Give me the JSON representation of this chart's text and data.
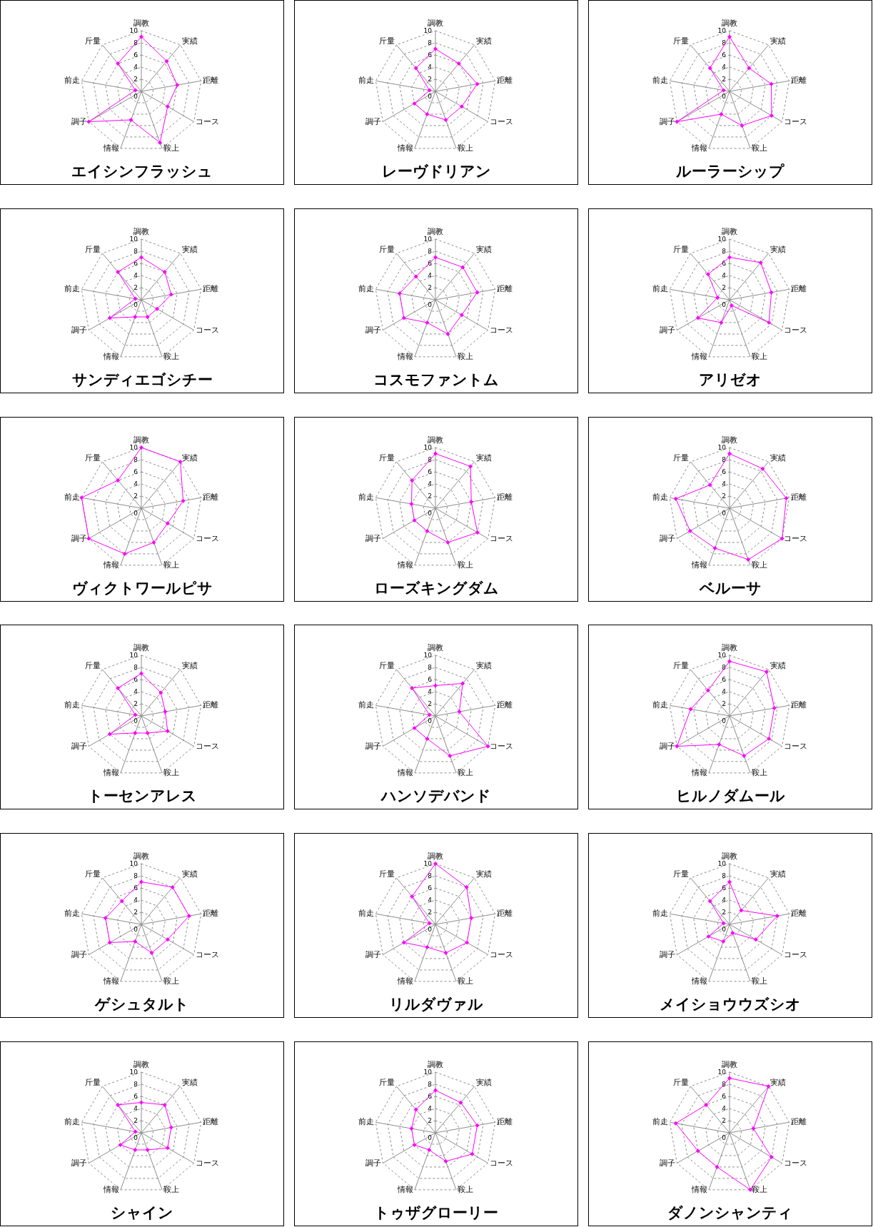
{
  "chart_data": [
    {
      "type": "radar",
      "title": "エイシンフラッシュ",
      "categories": [
        "調教",
        "実績",
        "距離",
        "コース",
        "鞍上",
        "情報",
        "調子",
        "前走",
        "斤量"
      ],
      "series": [
        {
          "color": "#ff00ff",
          "values": [
            9,
            6.5,
            6,
            5,
            9,
            5,
            10,
            1,
            6
          ]
        }
      ],
      "ylim": [
        0,
        10
      ],
      "yticks": [
        0,
        2,
        4,
        6,
        8,
        10
      ],
      "grid": true,
      "marker": "diamond"
    },
    {
      "type": "radar",
      "title": "レーヴドリアン",
      "categories": [
        "調教",
        "実績",
        "距離",
        "コース",
        "鞍上",
        "情報",
        "調子",
        "前走",
        "斤量"
      ],
      "series": [
        {
          "color": "#ff00ff",
          "values": [
            7,
            6,
            7,
            5,
            5,
            4,
            4,
            1,
            5
          ]
        }
      ],
      "ylim": [
        0,
        10
      ],
      "yticks": [
        0,
        2,
        4,
        6,
        8,
        10
      ],
      "grid": true,
      "marker": "diamond"
    },
    {
      "type": "radar",
      "title": "ルーラーシップ",
      "categories": [
        "調教",
        "実績",
        "距離",
        "コース",
        "鞍上",
        "情報",
        "調子",
        "前走",
        "斤量"
      ],
      "series": [
        {
          "color": "#ff00ff",
          "values": [
            9,
            5,
            7,
            8,
            6,
            4,
            10,
            1,
            5
          ]
        }
      ],
      "ylim": [
        0,
        10
      ],
      "yticks": [
        0,
        2,
        4,
        6,
        8,
        10
      ],
      "grid": true,
      "marker": "diamond"
    },
    {
      "type": "radar",
      "title": "サンディエゴシチー",
      "categories": [
        "調教",
        "実績",
        "距離",
        "コース",
        "鞍上",
        "情報",
        "調子",
        "前走",
        "斤量"
      ],
      "series": [
        {
          "color": "#ff00ff",
          "values": [
            7,
            6,
            5,
            3,
            3,
            3,
            6,
            1,
            6
          ]
        }
      ],
      "ylim": [
        0,
        10
      ],
      "yticks": [
        0,
        2,
        4,
        6,
        8,
        10
      ],
      "grid": true,
      "marker": "diamond"
    },
    {
      "type": "radar",
      "title": "コスモファントム",
      "categories": [
        "調教",
        "実績",
        "距離",
        "コース",
        "鞍上",
        "情報",
        "調子",
        "前走",
        "斤量"
      ],
      "series": [
        {
          "color": "#ff00ff",
          "values": [
            7,
            7,
            7,
            5,
            6,
            4,
            6,
            6,
            5
          ]
        }
      ],
      "ylim": [
        0,
        10
      ],
      "yticks": [
        0,
        2,
        4,
        6,
        8,
        10
      ],
      "grid": true,
      "marker": "diamond"
    },
    {
      "type": "radar",
      "title": "アリゼオ",
      "categories": [
        "調教",
        "実績",
        "距離",
        "コース",
        "鞍上",
        "情報",
        "調子",
        "前走",
        "斤量"
      ],
      "series": [
        {
          "color": "#ff00ff",
          "values": [
            7,
            8,
            7,
            7.5,
            1,
            4,
            6,
            2,
            5.5
          ]
        }
      ],
      "ylim": [
        0,
        10
      ],
      "yticks": [
        0,
        2,
        4,
        6,
        8,
        10
      ],
      "grid": true,
      "marker": "diamond"
    },
    {
      "type": "radar",
      "title": "ヴィクトワールピサ",
      "categories": [
        "調教",
        "実績",
        "距離",
        "コース",
        "鞍上",
        "情報",
        "調子",
        "前走",
        "斤量"
      ],
      "series": [
        {
          "color": "#ff00ff",
          "values": [
            10,
            10,
            7,
            5,
            6,
            8,
            10,
            10,
            6
          ]
        }
      ],
      "ylim": [
        0,
        10
      ],
      "yticks": [
        0,
        2,
        4,
        6,
        8,
        10
      ],
      "grid": true,
      "marker": "diamond"
    },
    {
      "type": "radar",
      "title": "ローズキングダム",
      "categories": [
        "調教",
        "実績",
        "距離",
        "コース",
        "鞍上",
        "情報",
        "調子",
        "前走",
        "斤量"
      ],
      "series": [
        {
          "color": "#ff00ff",
          "values": [
            9,
            9,
            6,
            8,
            6,
            4,
            4,
            4,
            6
          ]
        }
      ],
      "ylim": [
        0,
        10
      ],
      "yticks": [
        0,
        2,
        4,
        6,
        8,
        10
      ],
      "grid": true,
      "marker": "diamond"
    },
    {
      "type": "radar",
      "title": "ベルーサ",
      "categories": [
        "調教",
        "実績",
        "距離",
        "コース",
        "鞍上",
        "情報",
        "調子",
        "前走",
        "斤量"
      ],
      "series": [
        {
          "color": "#ff00ff",
          "values": [
            9,
            8.5,
            9.5,
            10,
            9,
            7,
            7.5,
            9,
            5
          ]
        }
      ],
      "ylim": [
        0,
        10
      ],
      "yticks": [
        0,
        2,
        4,
        6,
        8,
        10
      ],
      "grid": true,
      "marker": "diamond"
    },
    {
      "type": "radar",
      "title": "トーセンアレス",
      "categories": [
        "調教",
        "実績",
        "距離",
        "コース",
        "鞍上",
        "情報",
        "調子",
        "前走",
        "斤量"
      ],
      "series": [
        {
          "color": "#ff00ff",
          "values": [
            7,
            5,
            4,
            5,
            3,
            3,
            6,
            1,
            6
          ]
        }
      ],
      "ylim": [
        0,
        10
      ],
      "yticks": [
        0,
        2,
        4,
        6,
        8,
        10
      ],
      "grid": true,
      "marker": "diamond"
    },
    {
      "type": "radar",
      "title": "ハンソデバンド",
      "categories": [
        "調教",
        "実績",
        "距離",
        "コース",
        "鞍上",
        "情報",
        "調子",
        "前走",
        "斤量"
      ],
      "series": [
        {
          "color": "#ff00ff",
          "values": [
            5,
            7,
            4,
            10,
            7,
            4,
            4,
            1,
            6
          ]
        }
      ],
      "ylim": [
        0,
        10
      ],
      "yticks": [
        0,
        2,
        4,
        6,
        8,
        10
      ],
      "grid": true,
      "marker": "diamond"
    },
    {
      "type": "radar",
      "title": "ヒルノダムール",
      "categories": [
        "調教",
        "実績",
        "距離",
        "コース",
        "鞍上",
        "情報",
        "調子",
        "前走",
        "斤量"
      ],
      "series": [
        {
          "color": "#ff00ff",
          "values": [
            9,
            9.5,
            7.5,
            7.5,
            7,
            5,
            10,
            6.5,
            5.5
          ]
        }
      ],
      "ylim": [
        0,
        10
      ],
      "yticks": [
        0,
        2,
        4,
        6,
        8,
        10
      ],
      "grid": true,
      "marker": "diamond"
    },
    {
      "type": "radar",
      "title": "ゲシュタルト",
      "categories": [
        "調教",
        "実績",
        "距離",
        "コース",
        "鞍上",
        "情報",
        "調子",
        "前走",
        "斤量"
      ],
      "series": [
        {
          "color": "#ff00ff",
          "values": [
            7,
            8,
            8,
            5,
            5,
            3,
            6,
            6,
            5
          ]
        }
      ],
      "ylim": [
        0,
        10
      ],
      "yticks": [
        0,
        2,
        4,
        6,
        8,
        10
      ],
      "grid": true,
      "marker": "diamond"
    },
    {
      "type": "radar",
      "title": "リルダヴァル",
      "categories": [
        "調教",
        "実績",
        "距離",
        "コース",
        "鞍上",
        "情報",
        "調子",
        "前走",
        "斤量"
      ],
      "series": [
        {
          "color": "#ff00ff",
          "values": [
            10,
            8,
            6,
            6,
            5,
            4,
            6,
            1,
            6
          ]
        }
      ],
      "ylim": [
        0,
        10
      ],
      "yticks": [
        0,
        2,
        4,
        6,
        8,
        10
      ],
      "grid": true,
      "marker": "diamond"
    },
    {
      "type": "radar",
      "title": "メイショウウズシオ",
      "categories": [
        "調教",
        "実績",
        "距離",
        "コース",
        "鞍上",
        "情報",
        "調子",
        "前走",
        "斤量"
      ],
      "series": [
        {
          "color": "#ff00ff",
          "values": [
            7,
            3,
            8,
            5,
            1.5,
            3,
            4,
            1,
            5
          ]
        }
      ],
      "ylim": [
        0,
        10
      ],
      "yticks": [
        0,
        2,
        4,
        6,
        8,
        10
      ],
      "grid": true,
      "marker": "diamond"
    },
    {
      "type": "radar",
      "title": "シャイン",
      "categories": [
        "調教",
        "実績",
        "距離",
        "コース",
        "鞍上",
        "情報",
        "調子",
        "前走",
        "斤量"
      ],
      "series": [
        {
          "color": "#ff00ff",
          "values": [
            5,
            6,
            5,
            5,
            3,
            3,
            4,
            1,
            6
          ]
        }
      ],
      "ylim": [
        0,
        10
      ],
      "yticks": [
        0,
        2,
        4,
        6,
        8,
        10
      ],
      "grid": true,
      "marker": "diamond"
    },
    {
      "type": "radar",
      "title": "トゥザグローリー",
      "categories": [
        "調教",
        "実績",
        "距離",
        "コース",
        "鞍上",
        "情報",
        "調子",
        "前走",
        "斤量"
      ],
      "series": [
        {
          "color": "#ff00ff",
          "values": [
            7,
            6.5,
            7,
            7,
            5,
            3,
            4,
            4,
            5
          ]
        }
      ],
      "ylim": [
        0,
        10
      ],
      "yticks": [
        0,
        2,
        4,
        6,
        8,
        10
      ],
      "grid": true,
      "marker": "diamond"
    },
    {
      "type": "radar",
      "title": "ダノンシャンティ",
      "categories": [
        "調教",
        "実績",
        "距離",
        "コース",
        "鞍上",
        "情報",
        "調子",
        "前走",
        "斤量"
      ],
      "series": [
        {
          "color": "#ff00ff",
          "values": [
            9,
            10,
            4,
            8,
            10,
            6,
            6,
            9,
            6
          ]
        }
      ],
      "ylim": [
        0,
        10
      ],
      "yticks": [
        0,
        2,
        4,
        6,
        8,
        10
      ],
      "grid": true,
      "marker": "diamond"
    }
  ]
}
